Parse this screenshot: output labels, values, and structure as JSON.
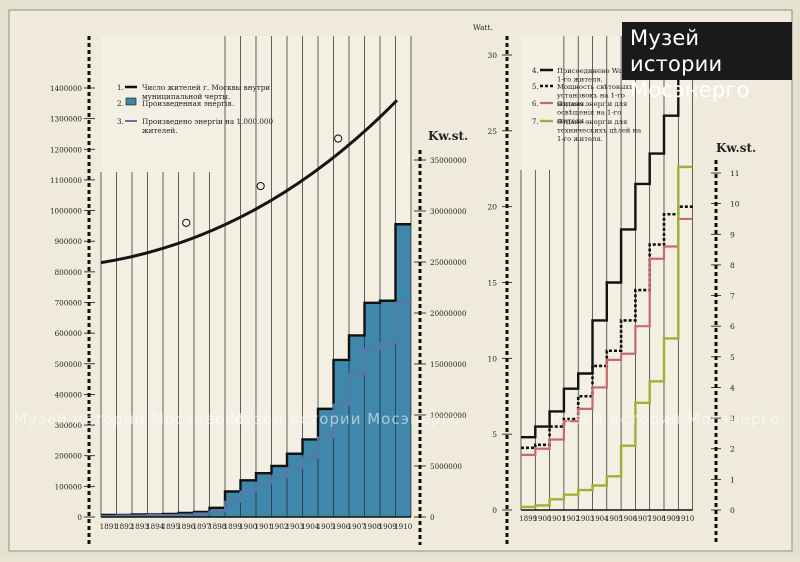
{
  "watermark": {
    "line1": "Музей истории",
    "line2": "Мосэнерго",
    "strip": "Музей истории Мосэнерго"
  },
  "colors": {
    "paper": "#efeadb",
    "energy_fill": "#3f88ac",
    "population_line": "#141414",
    "per_capita_line": "#5e74a8",
    "connected_watt": "#111111",
    "light_install": "#111111",
    "lighting_energy": "#c66b6b",
    "technical_energy": "#a6ad35"
  },
  "chart_data": [
    {
      "type": "area",
      "years": [
        "1891",
        "1892",
        "1893",
        "1894",
        "1895",
        "1896",
        "1897",
        "1898",
        "1899",
        "1900",
        "1901",
        "1902",
        "1903",
        "1904",
        "1905",
        "1906",
        "1907",
        "1908",
        "1909",
        "1910"
      ],
      "left_axis": {
        "ticks": [
          0,
          100000,
          200000,
          300000,
          400000,
          500000,
          600000,
          700000,
          800000,
          900000,
          1000000,
          1100000,
          1200000,
          1300000,
          1400000
        ],
        "range": [
          0,
          1400000
        ]
      },
      "right_axis": {
        "label": "Kw.st.",
        "ticks": [
          0,
          5000000,
          10000000,
          15000000,
          20000000,
          25000000,
          30000000,
          35000000
        ],
        "range": [
          0,
          35000000
        ]
      },
      "legend": [
        {
          "num": "1.",
          "text": "Число жителей г. Москвы внутри муниципальной черты."
        },
        {
          "num": "2.",
          "text": "Произведенная энергія."
        },
        {
          "num": "3.",
          "text": "Произведено энергіи на 1.000.000 жителей."
        }
      ],
      "series": [
        {
          "key": "population",
          "axis": "left",
          "x_start": 1891,
          "x_end": 1910.1,
          "start": 830000,
          "mid": 1005000,
          "end": 1360000,
          "markers": [
            {
              "x": 1896.5,
              "y": 960000
            },
            {
              "x": 1901.3,
              "y": 1080000
            },
            {
              "x": 1906.3,
              "y": 1235000
            }
          ]
        },
        {
          "key": "energy",
          "axis": "right",
          "values": [
            200000,
            200000,
            250000,
            250000,
            300000,
            400000,
            500000,
            900000,
            2500000,
            3600000,
            4300000,
            5000000,
            6200000,
            7600000,
            10600000,
            15400000,
            17800000,
            21000000,
            21200000,
            28700000
          ]
        },
        {
          "key": "energy_per_million",
          "axis": "right",
          "values": [
            100000,
            150000,
            150000,
            200000,
            200000,
            250000,
            350000,
            550000,
            1500000,
            2500000,
            3300000,
            3900000,
            4800000,
            5800000,
            7800000,
            11000000,
            14000000,
            16500000,
            17000000,
            21000000
          ]
        }
      ]
    },
    {
      "type": "line",
      "years": [
        "1899",
        "1900",
        "1901",
        "1902",
        "1903",
        "1904",
        "1905",
        "1906",
        "1907",
        "1908",
        "1909",
        "1910"
      ],
      "left_axis": {
        "label": "Watt.",
        "ticks": [
          0,
          5,
          10,
          15,
          20,
          25,
          30
        ],
        "range": [
          0,
          30
        ]
      },
      "right_axis": {
        "label": "Kw.st.",
        "ticks": [
          0,
          1,
          2,
          3,
          4,
          5,
          6,
          7,
          8,
          9,
          10,
          11
        ],
        "range": [
          0,
          11
        ]
      },
      "legend": [
        {
          "num": "4.",
          "text": "Присоединено Watt на 1-го жителя."
        },
        {
          "num": "5.",
          "text": "Мощность свѣтовыхъ установокъ на 1-го жителя."
        },
        {
          "num": "6.",
          "text": "Отдано энергіи для освѣщенія на 1-го жителя."
        },
        {
          "num": "7.",
          "text": "Отдано энергіи для техническихъ цѣлей на 1-го жителя."
        }
      ],
      "series": [
        {
          "key": "connected_watt",
          "axis": "left",
          "values": [
            4.8,
            5.5,
            6.5,
            8.0,
            9.0,
            12.5,
            15.0,
            18.5,
            21.5,
            23.5,
            26.0,
            30.0
          ]
        },
        {
          "key": "light_install",
          "axis": "left",
          "values": [
            4.1,
            4.3,
            5.5,
            6.0,
            7.5,
            9.5,
            10.5,
            12.5,
            14.5,
            17.5,
            19.5,
            20.0
          ]
        },
        {
          "key": "lighting_energy",
          "axis": "right",
          "values": [
            1.8,
            2.0,
            2.3,
            2.9,
            3.3,
            4.0,
            4.9,
            5.1,
            6.0,
            8.2,
            8.6,
            9.5
          ]
        },
        {
          "key": "technical_energy",
          "axis": "right",
          "values": [
            0.1,
            0.15,
            0.35,
            0.5,
            0.65,
            0.8,
            1.1,
            2.1,
            3.5,
            4.2,
            5.6,
            11.2
          ]
        }
      ]
    }
  ]
}
